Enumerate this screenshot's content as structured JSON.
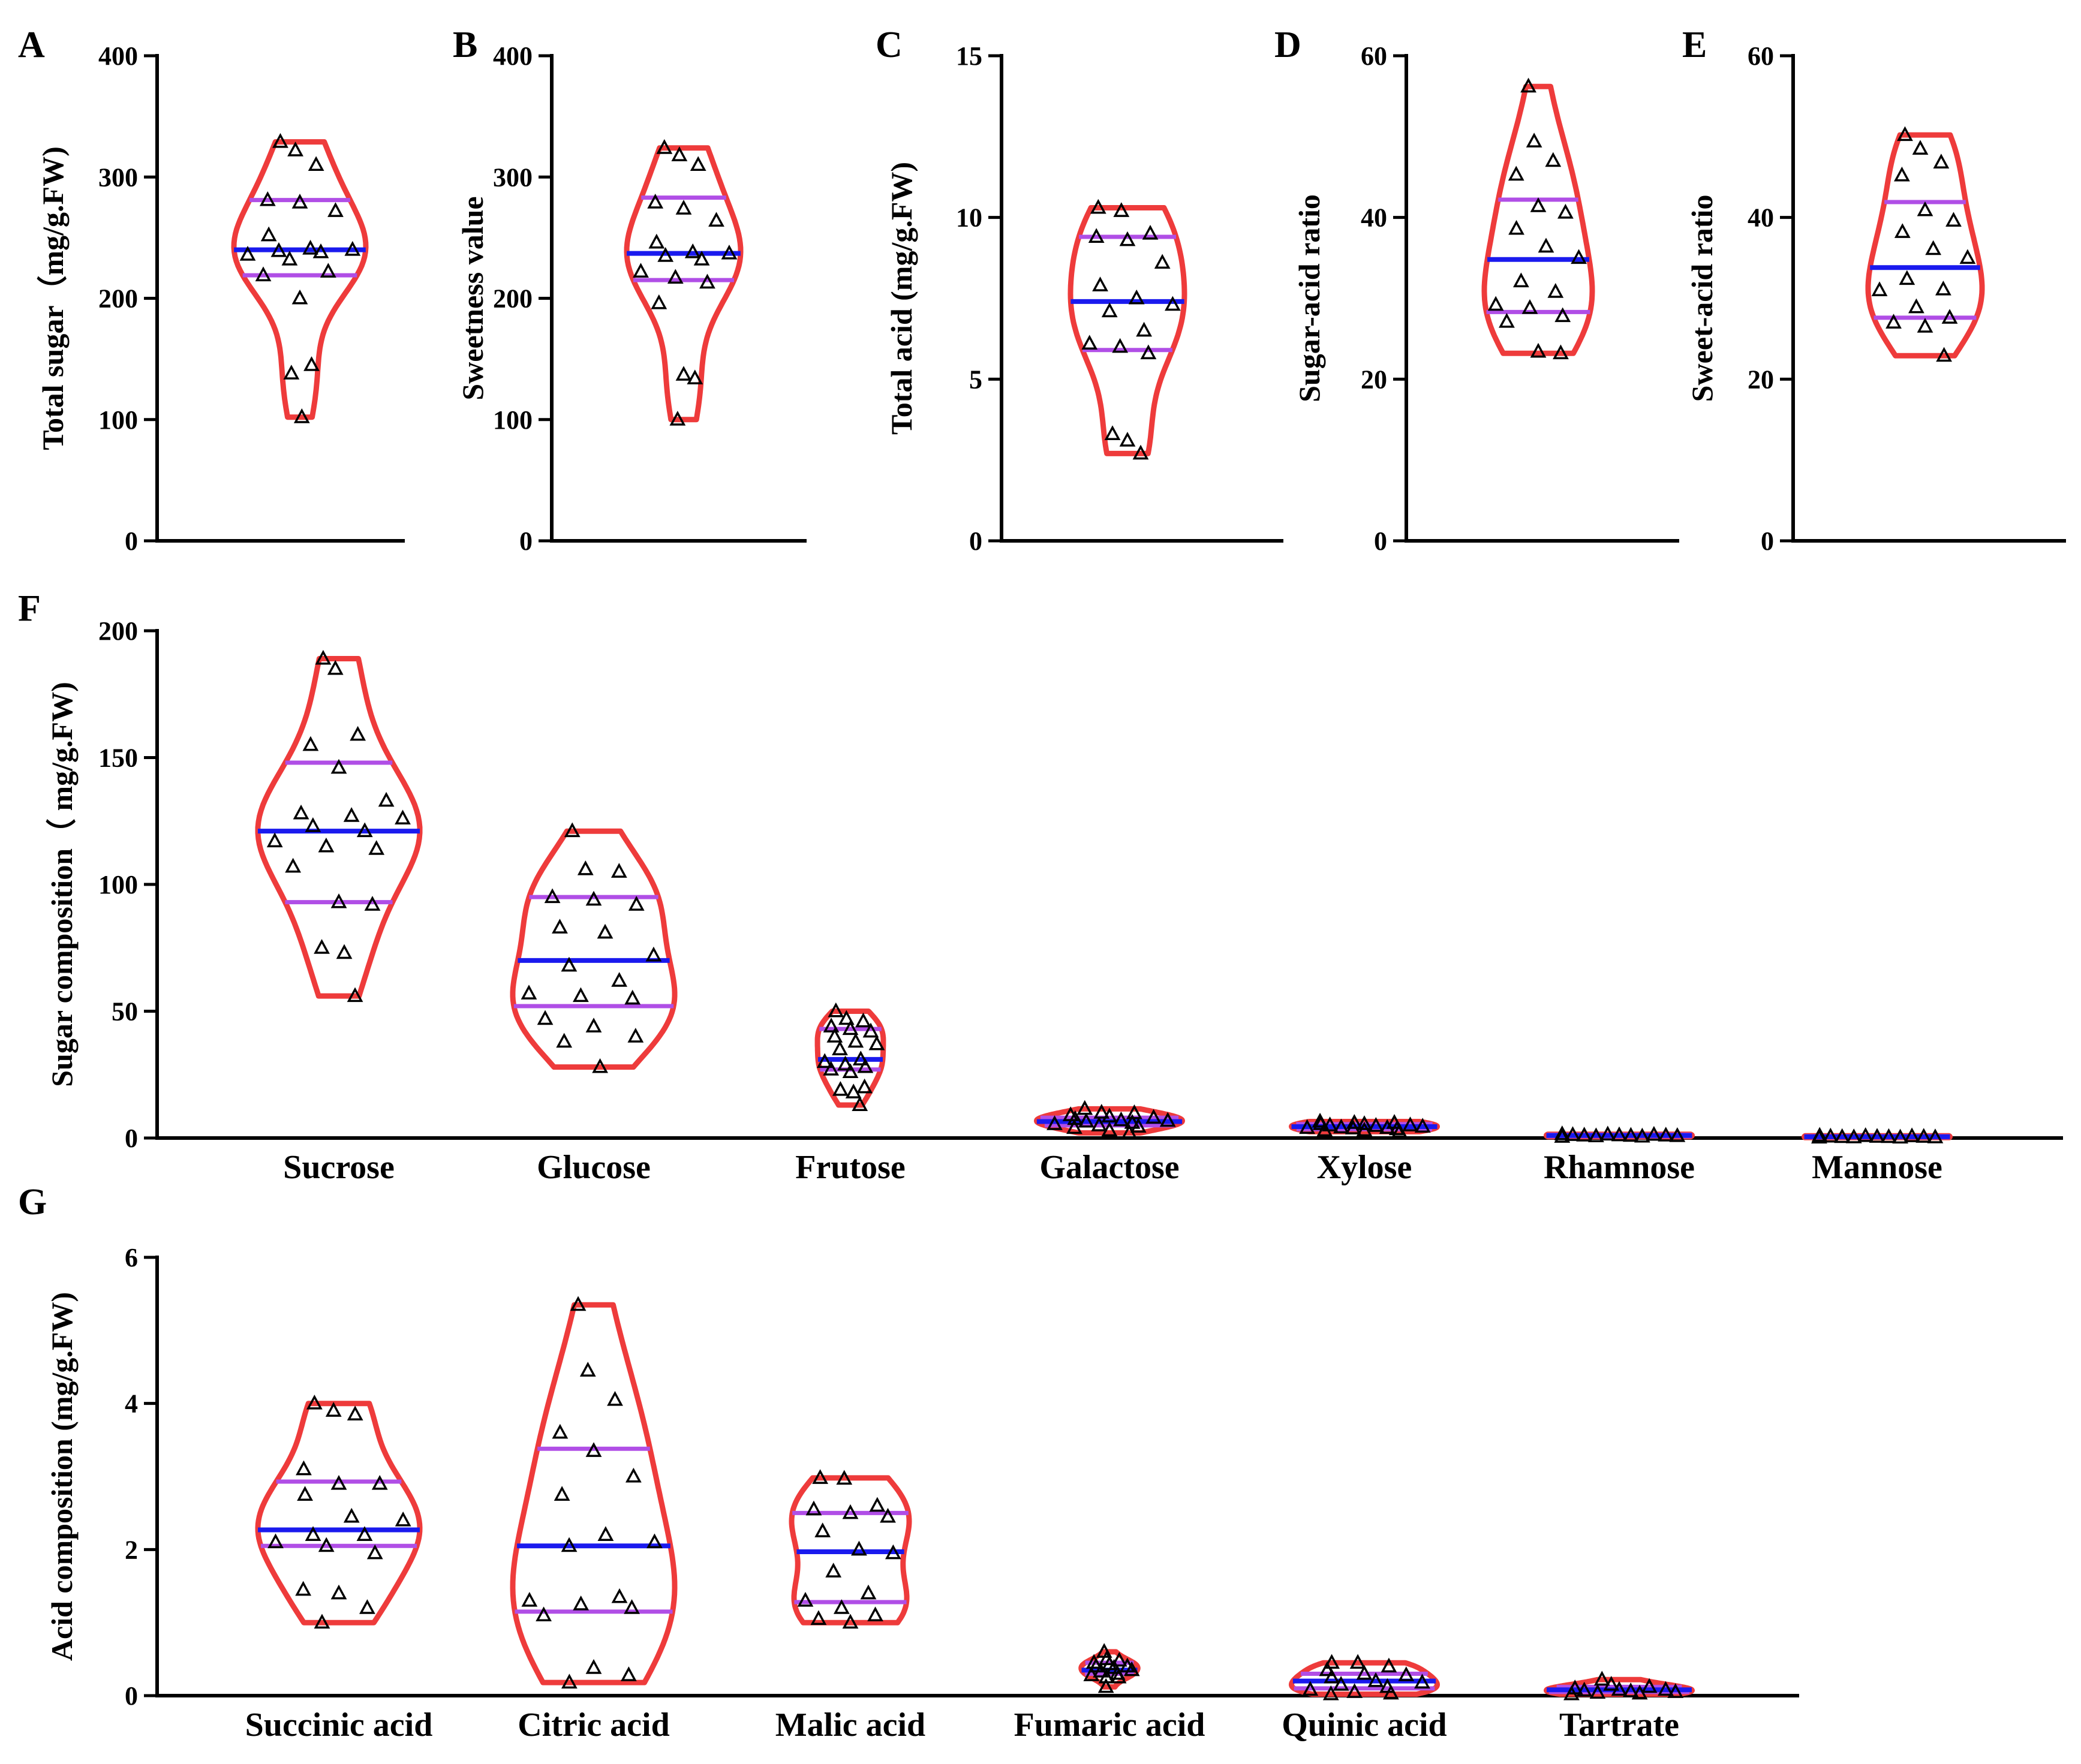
{
  "colors": {
    "violin": "#ee3b3b",
    "median": "#1a1aee",
    "quartile": "#b04ee6",
    "points": "#000000"
  },
  "chart_data": [
    {
      "id": "A",
      "type": "violin",
      "letter": "A",
      "ylabel": "Total sugar（mg/g.FW)",
      "ylim": [
        0,
        400
      ],
      "yticks": [
        "0",
        "100",
        "200",
        "300",
        "400"
      ],
      "series": [
        {
          "category": "",
          "median": 240,
          "q1": 219,
          "q3": 281,
          "values": [
            329,
            322,
            310,
            281,
            279,
            272,
            252,
            241,
            240,
            239,
            238,
            236,
            232,
            222,
            219,
            200,
            145,
            138,
            102
          ]
        }
      ]
    },
    {
      "id": "B",
      "type": "violin",
      "letter": "B",
      "ylabel": "Sweetness value",
      "ylim": [
        0,
        400
      ],
      "yticks": [
        "0",
        "100",
        "200",
        "300",
        "400"
      ],
      "series": [
        {
          "category": "",
          "median": 237,
          "q1": 215,
          "q3": 283,
          "values": [
            324,
            318,
            310,
            279,
            274,
            264,
            246,
            238,
            237,
            235,
            232,
            222,
            217,
            213,
            196,
            137,
            134,
            100
          ]
        }
      ]
    },
    {
      "id": "C",
      "type": "violin",
      "letter": "C",
      "ylabel": "Total acid (mg/g.FW)",
      "ylim": [
        0,
        15
      ],
      "yticks": [
        "0",
        "5",
        "10",
        "15"
      ],
      "series": [
        {
          "category": "",
          "median": 7.4,
          "q1": 5.9,
          "q3": 9.4,
          "values": [
            10.3,
            10.2,
            9.5,
            9.4,
            9.3,
            8.6,
            7.9,
            7.5,
            7.3,
            7.1,
            6.5,
            6.1,
            6.0,
            5.8,
            3.3,
            3.1,
            2.7
          ]
        }
      ]
    },
    {
      "id": "D",
      "type": "violin",
      "letter": "D",
      "ylabel": "Sugar-acid ratio",
      "ylim": [
        0,
        60
      ],
      "yticks": [
        "0",
        "20",
        "40",
        "60"
      ],
      "series": [
        {
          "category": "",
          "median": 34.8,
          "q1": 28.3,
          "q3": 42.2,
          "values": [
            56.2,
            49.4,
            47.0,
            45.3,
            41.4,
            40.6,
            38.6,
            36.4,
            35.0,
            32.1,
            30.8,
            29.2,
            28.8,
            27.8,
            27.1,
            23.4,
            23.2
          ]
        }
      ]
    },
    {
      "id": "E",
      "type": "violin",
      "letter": "E",
      "ylabel": "Sweet-acid ratio",
      "ylim": [
        0,
        60
      ],
      "yticks": [
        "0",
        "20",
        "40",
        "60"
      ],
      "series": [
        {
          "category": "",
          "median": 33.8,
          "q1": 27.6,
          "q3": 41.9,
          "values": [
            50.2,
            48.5,
            46.8,
            45.2,
            40.9,
            39.6,
            38.2,
            36.1,
            35.0,
            32.4,
            31.1,
            31.0,
            28.9,
            27.6,
            27.0,
            26.5,
            22.9
          ]
        }
      ]
    },
    {
      "id": "F",
      "type": "violin",
      "letter": "F",
      "ylabel": "Sugar composition（ mg/g.FW)",
      "ylim": [
        0,
        200
      ],
      "yticks": [
        "0",
        "50",
        "100",
        "150",
        "200"
      ],
      "series": [
        {
          "category": "Sucrose",
          "median": 121,
          "q1": 93,
          "q3": 148,
          "values": [
            189,
            185,
            159,
            155,
            146,
            133,
            128,
            127,
            126,
            123,
            121,
            117,
            115,
            114,
            107,
            93,
            92,
            75,
            73,
            56
          ]
        },
        {
          "category": "Glucose",
          "median": 70,
          "q1": 52,
          "q3": 95,
          "values": [
            121,
            106,
            105,
            95,
            94,
            92,
            83,
            81,
            72,
            68,
            62,
            57,
            56,
            55,
            47,
            44,
            40,
            38,
            28
          ]
        },
        {
          "category": "Frutose",
          "median": 31,
          "q1": 27,
          "q3": 43,
          "values": [
            50,
            47,
            46,
            44,
            43,
            42,
            40,
            38,
            37,
            35,
            31,
            30,
            29,
            28,
            27,
            26,
            20,
            19,
            18,
            13
          ]
        },
        {
          "category": "Galactose",
          "median": 6.5,
          "q1": 5,
          "q3": 8,
          "values": [
            11.5,
            10,
            9.8,
            9,
            8.5,
            8,
            7.5,
            7,
            6.8,
            6.5,
            6,
            5.5,
            5,
            4.5,
            4,
            3,
            2
          ]
        },
        {
          "category": "Xylose",
          "median": 4.5,
          "q1": 3.5,
          "q3": 5.5,
          "values": [
            6.5,
            6,
            6,
            5.5,
            5.5,
            5,
            5,
            4.8,
            4.5,
            4.2,
            4,
            4,
            3.8,
            3.5,
            3,
            3,
            2.5
          ]
        },
        {
          "category": "Rhamnose",
          "median": 1,
          "q1": 0.7,
          "q3": 1.3,
          "values": [
            1.5,
            1.4,
            1.3,
            1.2,
            1.1,
            1.0,
            1.0,
            0.9,
            0.8,
            0.7,
            0.6,
            0.5
          ]
        },
        {
          "category": "Mannose",
          "median": 0.5,
          "q1": 0.3,
          "q3": 0.7,
          "values": [
            0.9,
            0.8,
            0.7,
            0.6,
            0.5,
            0.5,
            0.4,
            0.4,
            0.3,
            0.3,
            0.2,
            0.2
          ]
        }
      ]
    },
    {
      "id": "G",
      "type": "violin",
      "letter": "G",
      "ylabel": "Acid composition (mg/g.FW)",
      "ylim": [
        0,
        6
      ],
      "yticks": [
        "0",
        "2",
        "4",
        "6"
      ],
      "series": [
        {
          "category": "Succinic acid",
          "median": 2.27,
          "q1": 2.05,
          "q3": 2.93,
          "values": [
            4.0,
            3.9,
            3.85,
            3.1,
            2.9,
            2.9,
            2.75,
            2.45,
            2.4,
            2.2,
            2.2,
            2.1,
            2.05,
            1.95,
            1.45,
            1.4,
            1.2,
            1.0
          ]
        },
        {
          "category": "Citric acid",
          "median": 2.05,
          "q1": 1.15,
          "q3": 3.38,
          "values": [
            5.35,
            4.45,
            4.05,
            3.6,
            3.35,
            3.0,
            2.75,
            2.2,
            2.1,
            2.05,
            1.35,
            1.3,
            1.25,
            1.2,
            1.1,
            0.38,
            0.28,
            0.18
          ]
        },
        {
          "category": "Malic acid",
          "median": 1.97,
          "q1": 1.28,
          "q3": 2.5,
          "values": [
            2.98,
            2.97,
            2.6,
            2.55,
            2.5,
            2.45,
            2.25,
            2.0,
            1.95,
            1.7,
            1.4,
            1.3,
            1.2,
            1.1,
            1.05,
            1.0
          ]
        },
        {
          "category": "Fumaric acid",
          "median": 0.35,
          "q1": 0.3,
          "q3": 0.45,
          "values": [
            0.6,
            0.5,
            0.48,
            0.45,
            0.43,
            0.4,
            0.4,
            0.38,
            0.35,
            0.33,
            0.3,
            0.28,
            0.25,
            0.25,
            0.12
          ]
        },
        {
          "category": "Quinic acid",
          "median": 0.2,
          "q1": 0.1,
          "q3": 0.3,
          "values": [
            0.45,
            0.45,
            0.4,
            0.35,
            0.3,
            0.28,
            0.25,
            0.2,
            0.18,
            0.15,
            0.12,
            0.08,
            0.05,
            0.03,
            0.02
          ]
        },
        {
          "category": "Tartrate",
          "median": 0.08,
          "q1": 0.05,
          "q3": 0.12,
          "values": [
            0.22,
            0.15,
            0.12,
            0.1,
            0.08,
            0.08,
            0.07,
            0.06,
            0.05,
            0.04,
            0.03,
            0.02
          ]
        }
      ]
    }
  ]
}
